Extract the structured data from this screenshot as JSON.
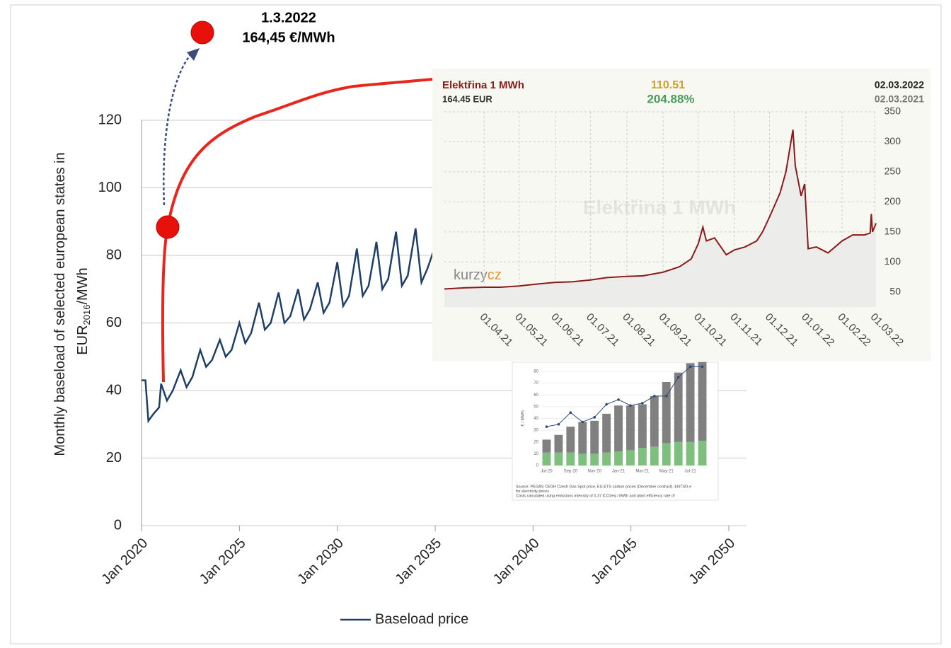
{
  "chart_data": [
    {
      "type": "line",
      "ylabel": [
        "Monthly baseload of selected european states  in",
        "EUR",
        "2016",
        "/MWh"
      ],
      "annotation": [
        "1.3.2022",
        "164,45 €/MWh"
      ],
      "xlim": [
        2020,
        2050
      ],
      "xticks": [
        {
          "value": 2020,
          "label": "Jan 2020"
        },
        {
          "value": 2025,
          "label": "Jan 2025"
        },
        {
          "value": 2030,
          "label": "Jan 2030"
        },
        {
          "value": 2035,
          "label": "Jan 2035"
        },
        {
          "value": 2040,
          "label": "Jan 2040"
        },
        {
          "value": 2045,
          "label": "Jan 2045"
        },
        {
          "value": 2050,
          "label": "Jan 2050"
        }
      ],
      "ylim": [
        0,
        120
      ],
      "yticks": [
        0,
        20,
        40,
        60,
        80,
        100,
        120
      ],
      "grid": true,
      "x": [
        2020.0,
        2020.2,
        2020.35,
        2020.6,
        2020.9,
        2021.0,
        2021.3,
        2021.6,
        2022.0,
        2022.3,
        2022.6,
        2023.0,
        2023.3,
        2023.6,
        2024.0,
        2024.3,
        2024.6,
        2025.0,
        2025.3,
        2025.6,
        2026.0,
        2026.3,
        2026.6,
        2027.0,
        2027.3,
        2027.6,
        2028.0,
        2028.3,
        2028.6,
        2029.0,
        2029.3,
        2029.6,
        2030.0,
        2030.3,
        2030.6,
        2031.0,
        2031.3,
        2031.6,
        2032.0,
        2032.3,
        2032.6,
        2033.0,
        2033.3,
        2033.6,
        2034.0,
        2034.3,
        2034.6,
        2034.9
      ],
      "series": [
        {
          "name": "Baseload price",
          "color": "#1f3f66",
          "values": [
            43,
            43,
            31,
            33,
            35,
            42,
            37,
            40,
            46,
            41,
            44,
            52,
            47,
            49,
            55,
            50,
            52,
            60,
            54,
            57,
            66,
            58,
            60,
            69,
            60,
            62,
            70,
            61,
            64,
            72,
            63,
            66,
            78,
            65,
            68,
            82,
            68,
            71,
            84,
            70,
            73,
            87,
            71,
            74,
            88,
            72,
            76,
            81
          ]
        }
      ]
    },
    {
      "type": "line",
      "header": {
        "title": "Elektřina 1 MWh",
        "change": "110.51",
        "date": "02.03.2022",
        "price": "164.45 EUR",
        "change_pct": "204.88%",
        "prev_date": "02.03.2021"
      },
      "watermark": "Elektřina 1 MWh",
      "logo": [
        "kurzy",
        "cz"
      ],
      "xlim": [
        "2021-02-26",
        "2022-03-02"
      ],
      "xticks": [
        {
          "value": "2021-04-01",
          "label": "01.04.21"
        },
        {
          "value": "2021-05-01",
          "label": "01.05.21"
        },
        {
          "value": "2021-06-01",
          "label": "01.06.21"
        },
        {
          "value": "2021-07-01",
          "label": "01.07.21"
        },
        {
          "value": "2021-08-01",
          "label": "01.08.21"
        },
        {
          "value": "2021-09-01",
          "label": "01.09.21"
        },
        {
          "value": "2021-10-01",
          "label": "01.10.21"
        },
        {
          "value": "2021-11-01",
          "label": "01.11.21"
        },
        {
          "value": "2021-12-01",
          "label": "01.12.21"
        },
        {
          "value": "2022-01-01",
          "label": "01.01.22"
        },
        {
          "value": "2022-02-01",
          "label": "01.02.22"
        },
        {
          "value": "2022-03-01",
          "label": "01.03.22"
        }
      ],
      "ylim": [
        25,
        350
      ],
      "yticks": [
        50,
        100,
        150,
        200,
        250,
        300,
        350
      ],
      "grid": true,
      "x": [
        "2021-02-26",
        "2021-03-15",
        "2021-04-01",
        "2021-04-15",
        "2021-05-01",
        "2021-05-15",
        "2021-06-01",
        "2021-06-15",
        "2021-07-01",
        "2021-07-15",
        "2021-08-01",
        "2021-08-15",
        "2021-09-01",
        "2021-09-15",
        "2021-09-25",
        "2021-10-01",
        "2021-10-05",
        "2021-10-08",
        "2021-10-15",
        "2021-10-25",
        "2021-11-01",
        "2021-11-10",
        "2021-11-20",
        "2021-11-25",
        "2021-12-01",
        "2021-12-10",
        "2021-12-15",
        "2021-12-21",
        "2021-12-23",
        "2021-12-28",
        "2021-12-31",
        "2022-01-03",
        "2022-01-10",
        "2022-01-20",
        "2022-02-01",
        "2022-02-10",
        "2022-02-20",
        "2022-02-25",
        "2022-02-26",
        "2022-02-27",
        "2022-03-02"
      ],
      "series": [
        {
          "color": "#8b1a1a",
          "values": [
            55,
            57,
            58,
            58,
            60,
            63,
            66,
            67,
            70,
            74,
            76,
            77,
            83,
            92,
            105,
            130,
            158,
            135,
            140,
            112,
            120,
            125,
            135,
            150,
            175,
            215,
            250,
            320,
            260,
            210,
            230,
            122,
            125,
            115,
            135,
            145,
            145,
            148,
            180,
            150,
            164.45
          ]
        }
      ]
    },
    {
      "type": "bar",
      "ylabel": "€ / MWh",
      "source": [
        "Source: PEGAS CEGH Czech Gas Spot price, EU-ETS carbon prices (December contract), ENTSO-e",
        "for electricity prices",
        "Costs calculated using emissions intensity of 0.37 tCO2eq / MWh and plant efficiency rate of"
      ],
      "categories": [
        "Jul-20",
        null,
        "Sep-20",
        null,
        "Nov-20",
        null,
        "Jan-21",
        null,
        "Mar-21",
        null,
        "May-21",
        null,
        "Jul-21",
        null
      ],
      "ylim": [
        0,
        80
      ],
      "yticks": [
        0,
        10,
        20,
        30,
        40,
        50,
        60,
        70,
        80
      ],
      "grid": true,
      "series": [
        {
          "color": "#7dbf7d",
          "values": [
            11,
            11,
            11,
            10,
            10,
            11,
            12,
            13,
            15,
            16,
            19,
            20,
            20,
            21
          ]
        },
        {
          "color": "#808080",
          "values": [
            11,
            15,
            22,
            27,
            28,
            33,
            39,
            38,
            37,
            43,
            52,
            59,
            67,
            67
          ]
        },
        {
          "type": "line",
          "color": "#2e4a7a",
          "values": [
            33,
            35,
            45,
            37,
            41,
            52,
            56,
            51,
            53,
            59,
            59,
            75,
            84,
            84
          ]
        }
      ]
    }
  ]
}
